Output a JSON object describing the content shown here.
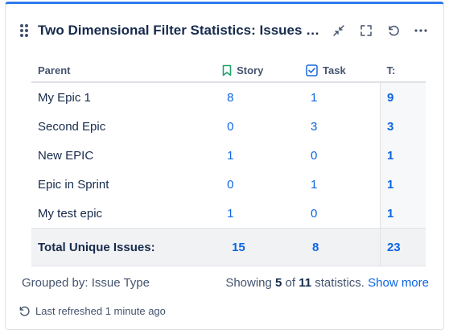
{
  "gadget": {
    "title": "Two Dimensional Filter Statistics: Issues un...",
    "icons": [
      "drag-handle-icon",
      "minimize-icon",
      "fullscreen-icon",
      "refresh-icon",
      "more-icon"
    ]
  },
  "table": {
    "headers": {
      "parent": "Parent",
      "story": "Story",
      "task": "Task",
      "total": "T:"
    },
    "rows": [
      {
        "parent": "My Epic 1",
        "story": "8",
        "task": "1",
        "total": "9"
      },
      {
        "parent": "Second Epic",
        "story": "0",
        "task": "3",
        "total": "3"
      },
      {
        "parent": "New EPIC",
        "story": "1",
        "task": "0",
        "total": "1"
      },
      {
        "parent": "Epic in Sprint",
        "story": "0",
        "task": "1",
        "total": "1"
      },
      {
        "parent": "My test epic",
        "story": "1",
        "task": "0",
        "total": "1"
      }
    ],
    "total_row": {
      "label": "Total Unique Issues:",
      "story": "15",
      "task": "8",
      "total": "23"
    }
  },
  "footer": {
    "grouped_by": "Grouped by: Issue Type",
    "showing_prefix": "Showing",
    "showing_count": "5",
    "showing_of": "of",
    "showing_total": "11",
    "showing_suffix": "statistics.",
    "show_more": "Show more",
    "last_refreshed": "Last refreshed 1 minute ago"
  },
  "colors": {
    "accent": "#2f7af0",
    "link": "#0c66e4",
    "story_icon": "#22a06b",
    "task_icon": "#1868db"
  }
}
